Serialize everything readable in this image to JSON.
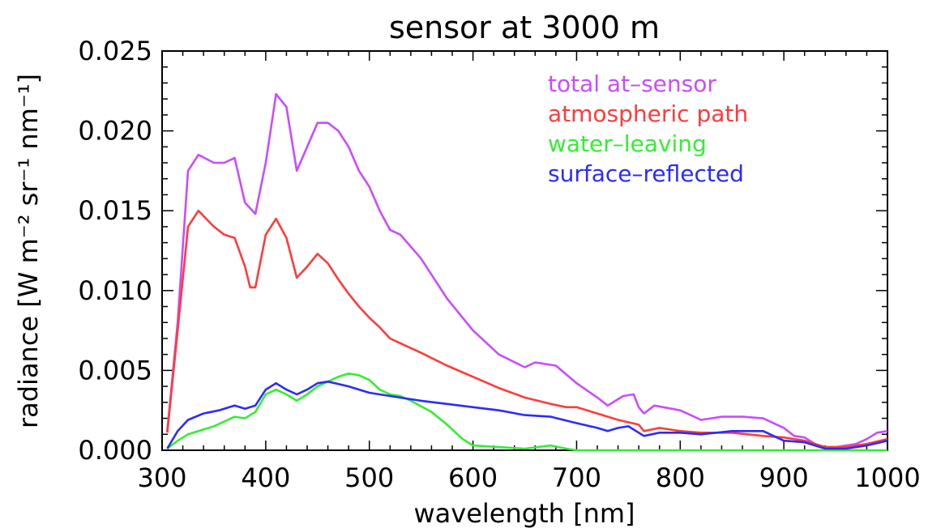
{
  "chart_data": {
    "type": "line",
    "title": "sensor at 3000 m",
    "xlabel": "wavelength [nm]",
    "ylabel": "radiance [W m⁻² sr⁻¹ nm⁻¹]",
    "xlim": [
      300,
      1000
    ],
    "ylim": [
      0,
      0.025
    ],
    "xticks": [
      300,
      400,
      500,
      600,
      700,
      800,
      900,
      1000
    ],
    "xtick_labels": [
      "300",
      "400",
      "500",
      "600",
      "700",
      "800",
      "900",
      "1000"
    ],
    "yticks": [
      0,
      0.005,
      0.01,
      0.015,
      0.02,
      0.025
    ],
    "ytick_labels": [
      "0.000",
      "0.005",
      "0.010",
      "0.015",
      "0.020",
      "0.025"
    ],
    "grid": false,
    "legend_position": "top-right",
    "series": [
      {
        "name": "total at–sensor",
        "color": "#c94cff",
        "x": [
          305,
          315,
          325,
          335,
          350,
          360,
          370,
          380,
          390,
          400,
          410,
          420,
          430,
          440,
          450,
          460,
          470,
          480,
          490,
          500,
          510,
          520,
          530,
          550,
          575,
          600,
          625,
          650,
          660,
          680,
          700,
          720,
          730,
          745,
          755,
          760,
          765,
          775,
          800,
          810,
          820,
          840,
          860,
          880,
          900,
          910,
          920,
          930,
          940,
          950,
          960,
          970,
          980,
          990,
          1000
        ],
        "y": [
          0.0012,
          0.008,
          0.0175,
          0.0185,
          0.018,
          0.018,
          0.0183,
          0.0155,
          0.0148,
          0.018,
          0.0223,
          0.0215,
          0.0175,
          0.019,
          0.0205,
          0.0205,
          0.02,
          0.019,
          0.0175,
          0.0165,
          0.015,
          0.0138,
          0.0135,
          0.012,
          0.0095,
          0.0075,
          0.006,
          0.0052,
          0.0055,
          0.0053,
          0.0042,
          0.0033,
          0.0028,
          0.0034,
          0.0035,
          0.0027,
          0.0023,
          0.0028,
          0.0025,
          0.0022,
          0.0019,
          0.0021,
          0.0021,
          0.002,
          0.0014,
          0.0009,
          0.0008,
          0.0004,
          0.0002,
          0.0002,
          0.0003,
          0.0004,
          0.0007,
          0.0011,
          0.0012
        ]
      },
      {
        "name": "atmospheric path",
        "color": "#ff3b3b",
        "x": [
          305,
          315,
          325,
          335,
          350,
          360,
          370,
          380,
          385,
          390,
          400,
          410,
          420,
          430,
          440,
          450,
          460,
          470,
          480,
          490,
          500,
          510,
          520,
          530,
          550,
          575,
          600,
          625,
          650,
          675,
          690,
          700,
          720,
          740,
          760,
          765,
          780,
          800,
          820,
          850,
          880,
          900,
          920,
          940,
          960,
          980,
          1000
        ],
        "y": [
          0.0011,
          0.0075,
          0.014,
          0.015,
          0.014,
          0.0135,
          0.0133,
          0.0115,
          0.0102,
          0.0102,
          0.0135,
          0.0145,
          0.0133,
          0.0108,
          0.0115,
          0.0123,
          0.0117,
          0.0107,
          0.0098,
          0.009,
          0.0083,
          0.0077,
          0.007,
          0.0067,
          0.0061,
          0.0053,
          0.0046,
          0.0039,
          0.0033,
          0.0029,
          0.0027,
          0.0027,
          0.0023,
          0.0019,
          0.0016,
          0.0012,
          0.0014,
          0.0012,
          0.0011,
          0.0011,
          0.0009,
          0.0008,
          0.0006,
          0.0002,
          0.0002,
          0.0004,
          0.0007
        ]
      },
      {
        "name": "water–leaving",
        "color": "#33ee33",
        "x": [
          305,
          315,
          325,
          340,
          350,
          360,
          370,
          380,
          390,
          400,
          410,
          420,
          430,
          440,
          450,
          460,
          470,
          480,
          490,
          500,
          510,
          520,
          530,
          540,
          560,
          575,
          590,
          600,
          625,
          650,
          675,
          690,
          700,
          750,
          800,
          900,
          1000
        ],
        "y": [
          0.0001,
          0.0006,
          0.001,
          0.0013,
          0.0015,
          0.0018,
          0.0021,
          0.002,
          0.0024,
          0.0035,
          0.0038,
          0.0035,
          0.0031,
          0.0035,
          0.004,
          0.0043,
          0.0046,
          0.0048,
          0.0047,
          0.0044,
          0.0038,
          0.0035,
          0.0034,
          0.0031,
          0.0024,
          0.0016,
          0.0007,
          0.0003,
          0.0002,
          0.0001,
          0.0003,
          0.0001,
          0.0,
          0.0,
          0.0,
          0.0,
          0.0
        ]
      },
      {
        "name": "surface–reflected",
        "color": "#2b2bff",
        "x": [
          305,
          315,
          325,
          340,
          355,
          370,
          380,
          390,
          400,
          410,
          420,
          430,
          440,
          450,
          460,
          480,
          500,
          520,
          550,
          575,
          600,
          625,
          650,
          675,
          700,
          720,
          730,
          740,
          750,
          760,
          765,
          780,
          800,
          820,
          850,
          880,
          900,
          920,
          940,
          960,
          980,
          1000
        ],
        "y": [
          0.0001,
          0.0012,
          0.0019,
          0.0023,
          0.0025,
          0.0028,
          0.0026,
          0.0028,
          0.0038,
          0.0042,
          0.0038,
          0.0035,
          0.0038,
          0.0042,
          0.0043,
          0.004,
          0.0036,
          0.0034,
          0.0031,
          0.0029,
          0.0027,
          0.0025,
          0.0022,
          0.0021,
          0.0017,
          0.0014,
          0.0012,
          0.0014,
          0.0015,
          0.0011,
          0.0009,
          0.0011,
          0.0011,
          0.001,
          0.0012,
          0.0012,
          0.0006,
          0.0005,
          0.0001,
          0.0001,
          0.0003,
          0.0006
        ]
      }
    ]
  }
}
